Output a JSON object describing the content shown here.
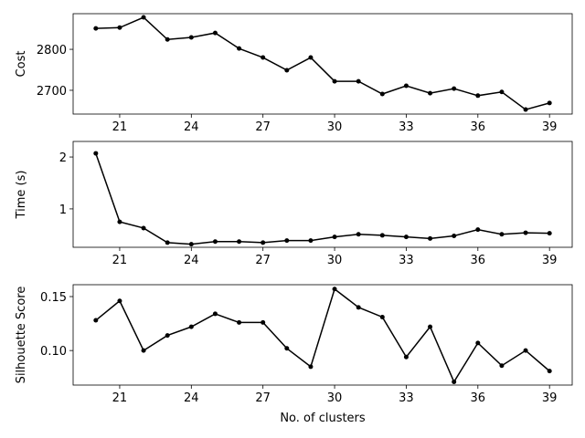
{
  "chart_data": [
    {
      "type": "line",
      "ylabel": "Cost",
      "color": "#000000",
      "x": [
        20,
        21,
        22,
        23,
        24,
        25,
        26,
        27,
        28,
        29,
        30,
        31,
        32,
        33,
        34,
        35,
        36,
        37,
        38,
        39
      ],
      "values": [
        2851,
        2853,
        2878,
        2824,
        2829,
        2840,
        2802,
        2780,
        2749,
        2780,
        2722,
        2722,
        2691,
        2711,
        2693,
        2704,
        2687,
        2696,
        2653,
        2669
      ],
      "xlim": [
        19.05,
        39.95
      ],
      "xticks": [
        21,
        24,
        27,
        30,
        33,
        36,
        39
      ],
      "ylim": [
        2642,
        2887
      ],
      "yticks": [
        2700,
        2800
      ]
    },
    {
      "type": "line",
      "ylabel": "Time (s)",
      "color": "#000000",
      "x": [
        20,
        21,
        22,
        23,
        24,
        25,
        26,
        27,
        28,
        29,
        30,
        31,
        32,
        33,
        34,
        35,
        36,
        37,
        38,
        39
      ],
      "values": [
        2.07,
        0.75,
        0.63,
        0.35,
        0.32,
        0.37,
        0.37,
        0.35,
        0.39,
        0.39,
        0.46,
        0.51,
        0.49,
        0.46,
        0.43,
        0.48,
        0.6,
        0.51,
        0.54,
        0.53
      ],
      "xlim": [
        19.05,
        39.95
      ],
      "xticks": [
        21,
        24,
        27,
        30,
        33,
        36,
        39
      ],
      "ylim": [
        0.26,
        2.3
      ],
      "yticks": [
        1,
        2
      ]
    },
    {
      "type": "line",
      "ylabel": "Silhouette Score",
      "xlabel": "No. of clusters",
      "color": "#000000",
      "x": [
        20,
        21,
        22,
        23,
        24,
        25,
        26,
        27,
        28,
        29,
        30,
        31,
        32,
        33,
        34,
        35,
        36,
        37,
        38,
        39
      ],
      "values": [
        0.128,
        0.146,
        0.1,
        0.114,
        0.122,
        0.134,
        0.126,
        0.126,
        0.102,
        0.085,
        0.157,
        0.14,
        0.131,
        0.094,
        0.122,
        0.071,
        0.107,
        0.086,
        0.1,
        0.081
      ],
      "xlim": [
        19.05,
        39.95
      ],
      "xticks": [
        21,
        24,
        27,
        30,
        33,
        36,
        39
      ],
      "ylim": [
        0.068,
        0.161
      ],
      "yticks": [
        {
          "value": 0.1,
          "label": "0.10"
        },
        {
          "value": 0.15,
          "label": "0.15"
        }
      ]
    }
  ]
}
